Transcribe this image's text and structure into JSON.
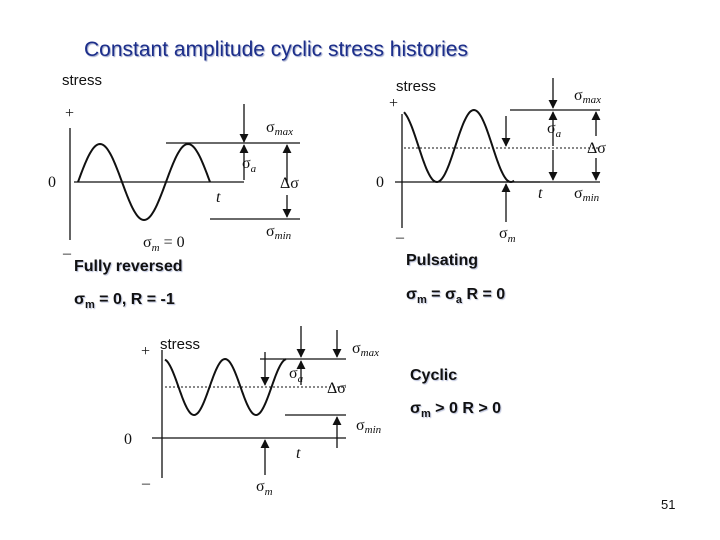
{
  "title": "Constant amplitude cyclic stress histories",
  "page_number": "51",
  "diagrams": {
    "fully_reversed": {
      "caption": "Fully reversed",
      "eq_sigma": "σ",
      "eq_sub": "m",
      "eq_rest": " = 0,  R = -1",
      "axis_label": "stress",
      "plus": "+",
      "minus": "–",
      "zero": "0",
      "t": "t",
      "sigma": "σ",
      "max": "max",
      "min": "min",
      "a": "a",
      "delta": "Δσ",
      "sm_zero_sub": "m",
      "sm_zero_rest": " = 0"
    },
    "pulsating": {
      "caption": "Pulsating",
      "eq_sigma": "σ",
      "eq_sub": "m",
      "eq_mid": " = σ",
      "eq_sub2": "a",
      "eq_rest": "  R = 0",
      "axis_label": "stress",
      "plus": "+",
      "minus": "–",
      "zero": "0",
      "t": "t",
      "sigma": "σ",
      "max": "max",
      "min": "min",
      "a": "a",
      "m": "m",
      "delta": "Δσ"
    },
    "cyclic": {
      "caption": "Cyclic",
      "eq_sigma": "σ",
      "eq_sub": "m",
      "eq_rest": " > 0   R > 0",
      "axis_label": "stress",
      "plus": "+",
      "minus": "–",
      "zero": "0",
      "t": "t",
      "sigma": "σ",
      "max": "max",
      "min": "min",
      "a": "a",
      "m": "m",
      "delta": "Δσ"
    }
  }
}
